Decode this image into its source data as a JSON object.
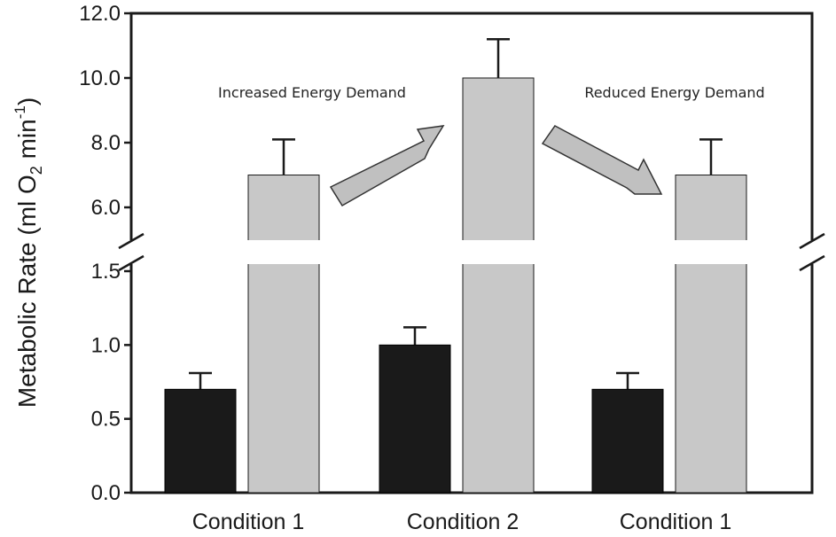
{
  "chart_data": {
    "type": "bar",
    "categories": [
      "Condition 1",
      "Condition 2",
      "Condition 1"
    ],
    "series": [
      {
        "name": "Black bars",
        "color": "#1a1a1a",
        "values": [
          0.7,
          1.0,
          0.7
        ],
        "errors": [
          0.11,
          0.12,
          0.11
        ]
      },
      {
        "name": "Gray bars",
        "color": "#c8c8c8",
        "values": [
          7.0,
          10.0,
          7.0
        ],
        "errors": [
          1.1,
          1.2,
          1.1
        ]
      }
    ],
    "ylabel_main": "Metabolic Rate (ml O",
    "ylabel_sub": "2",
    "ylabel_mid": " min",
    "ylabel_sup": "-1",
    "ylabel_end": ")",
    "lower_axis": {
      "range": [
        0,
        1.5
      ],
      "ticks": [
        0.0,
        0.5,
        1.0,
        1.5
      ],
      "tick_labels": [
        "0.0",
        "0.5",
        "1.0",
        "1.5"
      ]
    },
    "upper_axis": {
      "range": [
        5.0,
        12.0
      ],
      "ticks": [
        6.0,
        8.0,
        10.0,
        12.0
      ],
      "tick_labels": [
        "6.0",
        "8.0",
        "10.0",
        "12.0"
      ]
    },
    "broken_axis": true,
    "annotations": [
      {
        "text": "Increased Energy Demand",
        "arrow": "up"
      },
      {
        "text": "Reduced Energy Demand",
        "arrow": "down"
      }
    ],
    "colors": {
      "black_bar": "#1a1a1a",
      "gray_bar": "#c8c8c8",
      "arrow_fill": "#c0c0c0",
      "axis": "#1a1a1a"
    }
  }
}
